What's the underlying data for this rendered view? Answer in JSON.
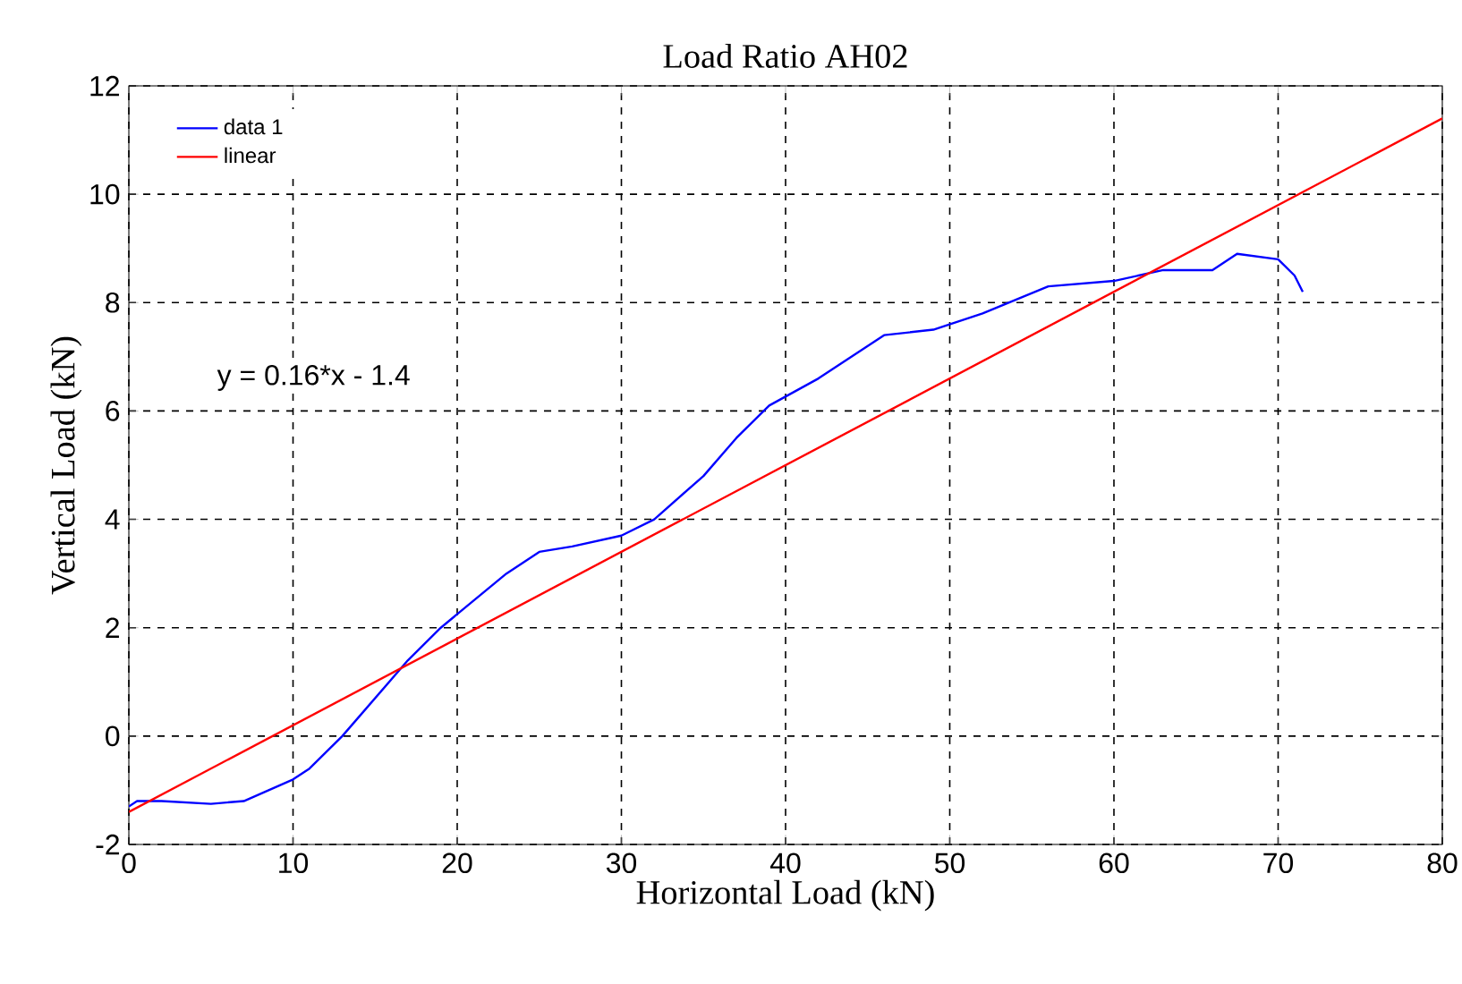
{
  "chart_data": {
    "type": "line",
    "title": "Load Ratio AH02",
    "xlabel": "Horizontal Load (kN)",
    "ylabel": "Vertical Load (kN)",
    "annotations": [
      "y = 0.16*x - 1.4"
    ],
    "xlim": [
      0,
      80
    ],
    "ylim": [
      -2,
      12
    ],
    "xticks": [
      0,
      10,
      20,
      30,
      40,
      50,
      60,
      70,
      80
    ],
    "yticks": [
      -2,
      0,
      2,
      4,
      6,
      8,
      10,
      12
    ],
    "grid": true,
    "legend": "top left",
    "line_style": "solid",
    "series": [
      {
        "name": "data 1",
        "color": "#0000ff",
        "x": [
          0,
          0.5,
          2,
          5,
          7,
          10,
          11,
          13,
          15,
          17,
          19,
          21,
          23,
          25,
          27,
          30,
          32,
          35,
          37,
          39,
          42,
          44,
          46,
          49,
          52,
          56,
          60,
          63,
          66,
          67.5,
          70,
          71,
          71.5
        ],
        "values": [
          -1.3,
          -1.2,
          -1.2,
          -1.25,
          -1.2,
          -0.8,
          -0.6,
          0,
          0.7,
          1.4,
          2.0,
          2.5,
          3.0,
          3.4,
          3.5,
          3.7,
          4.0,
          4.8,
          5.5,
          6.1,
          6.6,
          7.0,
          7.4,
          7.5,
          7.8,
          8.3,
          8.4,
          8.6,
          8.6,
          8.9,
          8.8,
          8.5,
          8.2
        ]
      },
      {
        "name": "linear",
        "color": "#ff0000",
        "x": [
          0,
          80
        ],
        "values": [
          -1.4,
          11.4
        ]
      }
    ]
  }
}
